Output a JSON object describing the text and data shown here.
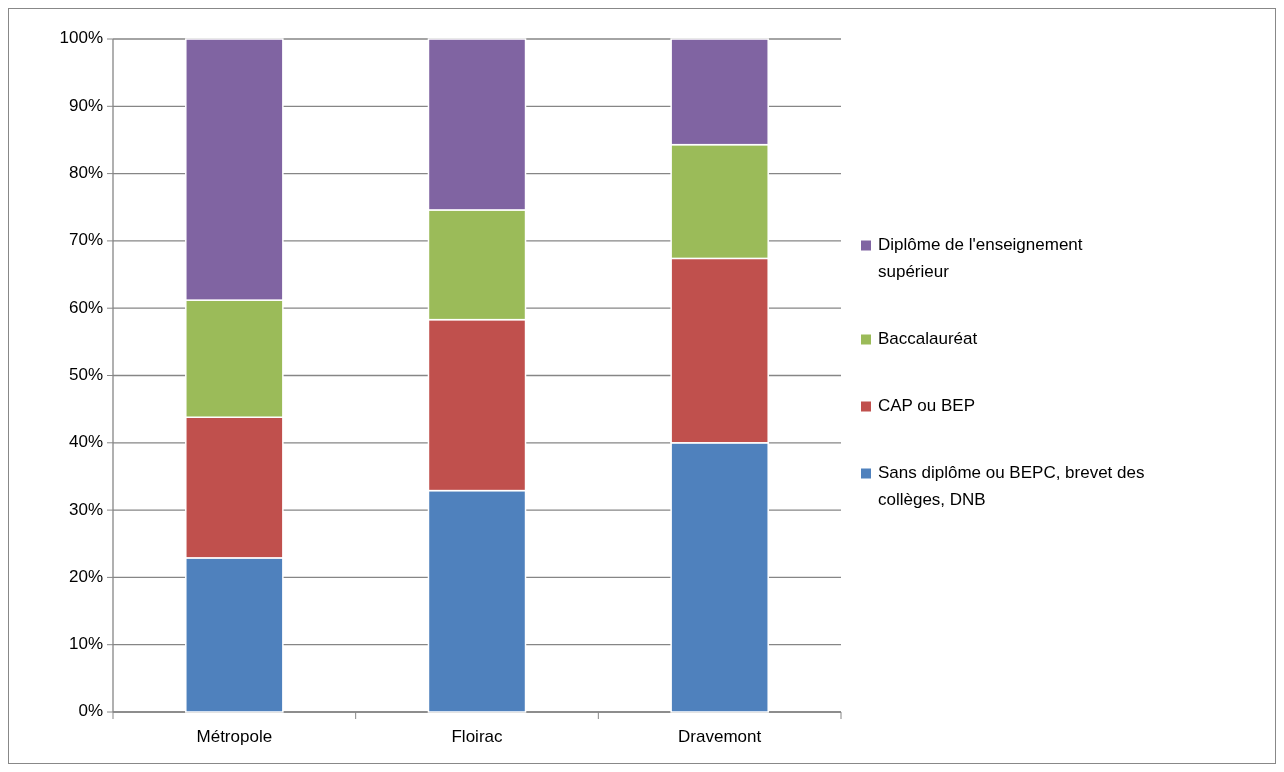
{
  "chart_data": {
    "type": "bar",
    "stacked": true,
    "categories": [
      "Métropole",
      "Floirac",
      "Dravemont"
    ],
    "series": [
      {
        "name": "Sans diplôme ou BEPC, brevet des collèges, DNB",
        "color": "#4f81bd",
        "values": [
          22.9,
          32.9,
          40.0
        ]
      },
      {
        "name": "CAP ou BEP",
        "color": "#c0504d",
        "values": [
          20.9,
          25.4,
          27.4
        ]
      },
      {
        "name": "Baccalauréat",
        "color": "#9bbb59",
        "values": [
          17.4,
          16.3,
          16.9
        ]
      },
      {
        "name": "Diplôme de l'enseignement supérieur",
        "color": "#8064a2",
        "values": [
          38.8,
          25.4,
          15.7
        ]
      }
    ],
    "ylim": [
      0,
      100
    ],
    "yticks": [
      {
        "value": 0,
        "label": "0%"
      },
      {
        "value": 10,
        "label": "10%"
      },
      {
        "value": 20,
        "label": "20%"
      },
      {
        "value": 30,
        "label": "30%"
      },
      {
        "value": 40,
        "label": "40%"
      },
      {
        "value": 50,
        "label": "50%"
      },
      {
        "value": 60,
        "label": "60%"
      },
      {
        "value": 70,
        "label": "70%"
      },
      {
        "value": 80,
        "label": "80%"
      },
      {
        "value": 90,
        "label": "90%"
      },
      {
        "value": 100,
        "label": "100%"
      }
    ],
    "grid": "y",
    "legend": "right"
  }
}
